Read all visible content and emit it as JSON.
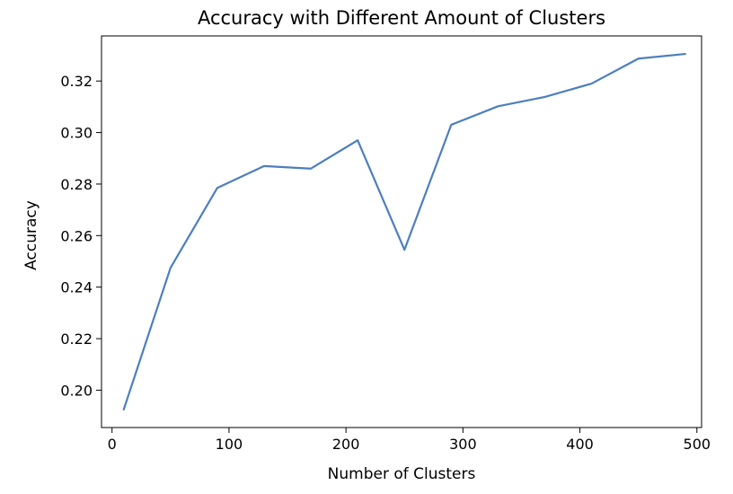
{
  "chart_data": {
    "type": "line",
    "title": "Accuracy with Different Amount of Clusters",
    "xlabel": "Number of Clusters",
    "ylabel": "Accuracy",
    "xlim": [
      -9,
      504
    ],
    "ylim": [
      0.1855,
      0.3375
    ],
    "x_ticks": [
      0,
      100,
      200,
      300,
      400,
      500
    ],
    "x_tick_labels": [
      "0",
      "100",
      "200",
      "300",
      "400",
      "500"
    ],
    "y_ticks": [
      0.2,
      0.22,
      0.24,
      0.26,
      0.28,
      0.3,
      0.32
    ],
    "y_tick_labels": [
      "0.20",
      "0.22",
      "0.24",
      "0.26",
      "0.28",
      "0.30",
      "0.32"
    ],
    "grid": false,
    "legend": "none",
    "series": [
      {
        "color": "#4c7fbd",
        "x": [
          10,
          50,
          90,
          130,
          170,
          210,
          250,
          290,
          330,
          370,
          410,
          450,
          490
        ],
        "y": [
          0.1925,
          0.2475,
          0.2785,
          0.287,
          0.286,
          0.297,
          0.2545,
          0.303,
          0.3102,
          0.3138,
          0.319,
          0.3287,
          0.3305
        ]
      }
    ]
  }
}
